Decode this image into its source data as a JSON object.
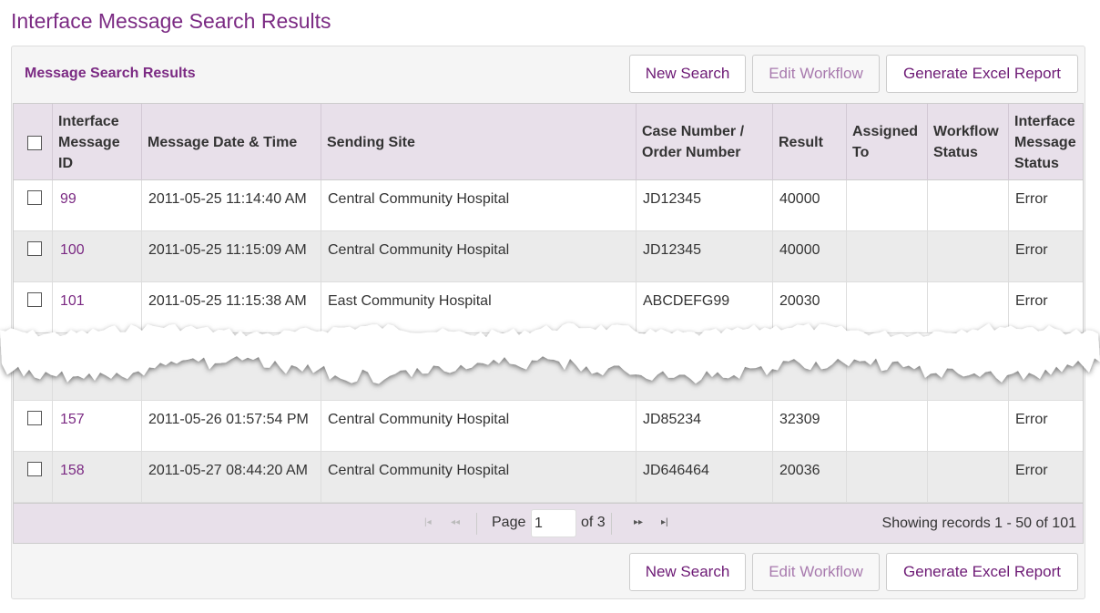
{
  "header": {
    "title": "Interface Message Search Results"
  },
  "panel": {
    "title": "Message Search Results",
    "buttons": [
      "New Search",
      "Edit Workflow",
      "Generate Excel Report"
    ]
  },
  "table": {
    "columns": [
      "Interface Message ID",
      "Message Date & Time",
      "Sending Site",
      "Case Number / Order Number",
      "Result",
      "Assigned To",
      "Workflow Status",
      "Interface Message Status"
    ],
    "rows": [
      {
        "id": "99",
        "datetime": "2011-05-25 11:14:40 AM",
        "site": "Central Community Hospital",
        "case": "JD12345",
        "result": "40000",
        "status": "Error"
      },
      {
        "id": "100",
        "datetime": "2011-05-25 11:15:09 AM",
        "site": "Central Community Hospital",
        "case": "JD12345",
        "result": "40000",
        "status": "Error"
      },
      {
        "id": "101",
        "datetime": "2011-05-25 11:15:38 AM",
        "site": "East Community Hospital",
        "case": "ABCDEFG99",
        "result": "20030",
        "status": "Error"
      },
      {
        "id": "157",
        "datetime": "2011-05-26 01:57:54 PM",
        "site": "Central Community Hospital",
        "case": "JD85234",
        "result": "32309",
        "status": "Error"
      },
      {
        "id": "158",
        "datetime": "2011-05-27 08:44:20 AM",
        "site": "Central Community Hospital",
        "case": "JD646464",
        "result": "20036",
        "status": "Error"
      }
    ]
  },
  "pager": {
    "page_label": "Page",
    "page": "1",
    "of": "of 3",
    "summary": "Showing records 1 - 50 of 101"
  }
}
